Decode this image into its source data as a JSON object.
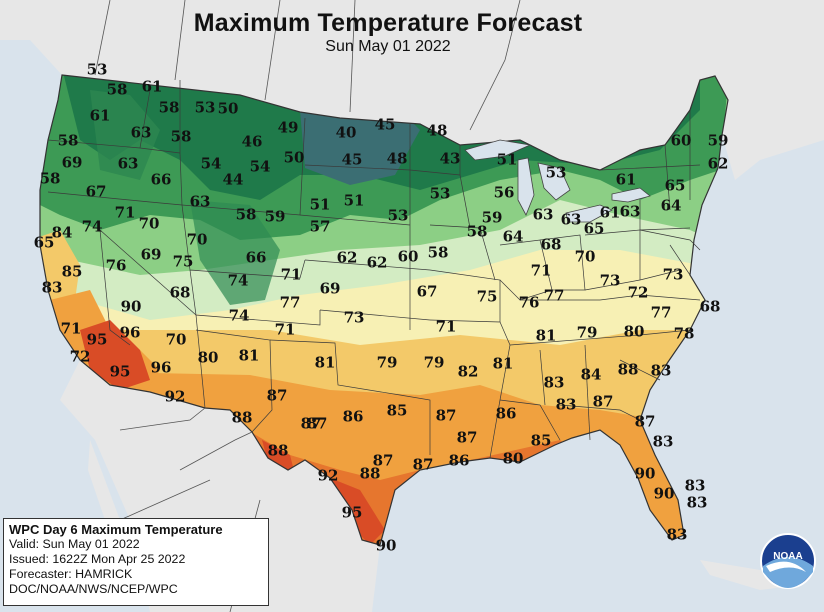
{
  "title": "Maximum Temperature Forecast",
  "subtitle": "Sun May 01 2022",
  "info": {
    "heading": "WPC Day 6 Maximum Temperature",
    "valid": "Valid: Sun May 01 2022",
    "issued": "Issued: 1622Z Mon Apr 25 2022",
    "forecaster": "Forecaster: HAMRICK",
    "agency": "DOC/NOAA/NWS/NCEP/WPC"
  },
  "logo_text": "NOAA",
  "colors": {
    "ocean": "#d9e3ec",
    "land_outside": "#e8e8e8",
    "cold_teal": "#3b6e73",
    "dark_green": "#1f7a4a",
    "green": "#3d9a55",
    "light_green": "#8ccf85",
    "pale_green": "#d3ecc3",
    "pale_yellow": "#f7f0b4",
    "yellow_orange": "#f3c969",
    "orange": "#f0a13f",
    "dark_orange": "#e6762e",
    "red_orange": "#d94c26"
  },
  "labels": [
    "53",
    "58",
    "61",
    "58",
    "61",
    "63",
    "53",
    "50",
    "58",
    "69",
    "63",
    "58",
    "46",
    "49",
    "40",
    "45",
    "48",
    "58",
    "67",
    "66",
    "54",
    "54",
    "50",
    "45",
    "48",
    "43",
    "51",
    "53",
    "44",
    "51",
    "53",
    "63",
    "58",
    "59",
    "51",
    "53",
    "56",
    "59",
    "63",
    "63",
    "65",
    "61",
    "63",
    "61",
    "64",
    "65",
    "62",
    "59",
    "60",
    "71",
    "70",
    "74",
    "65",
    "84",
    "70",
    "57",
    "62",
    "62",
    "60",
    "58",
    "58",
    "64",
    "68",
    "70",
    "71",
    "73",
    "69",
    "76",
    "75",
    "66",
    "71",
    "69",
    "67",
    "75",
    "76",
    "77",
    "73",
    "72",
    "77",
    "85",
    "83",
    "68",
    "90",
    "74",
    "77",
    "74",
    "73",
    "71",
    "81",
    "79",
    "80",
    "78",
    "68",
    "96",
    "71",
    "71",
    "95",
    "70",
    "80",
    "81",
    "81",
    "79",
    "79",
    "82",
    "81",
    "83",
    "84",
    "88",
    "83",
    "72",
    "95",
    "96",
    "92",
    "87",
    "87",
    "86",
    "85",
    "83",
    "87",
    "87",
    "86",
    "87",
    "88",
    "87",
    "88",
    "87",
    "87",
    "92",
    "88",
    "87",
    "86",
    "85",
    "80",
    "83",
    "90",
    "90",
    "83",
    "83",
    "83",
    "95",
    "90"
  ]
}
